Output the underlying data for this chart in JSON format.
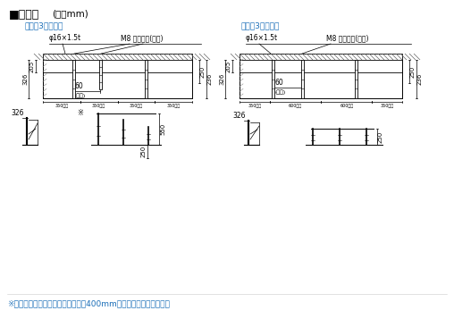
{
  "title_bold": "■据付図",
  "title_normal": "(単位mm)",
  "subtitle_left": "段差式3台の場合",
  "subtitle_right": "平置式3台の場合",
  "label_phi": "φ16×1.5t",
  "label_M8": "M8 アンカー(別途)",
  "dim_205": "205",
  "dim_326": "326",
  "dim_250r": "250",
  "dim_236": "236",
  "dim_60": "60",
  "dim_naisu": "(内寸)",
  "dim_550": "550",
  "dim_250b": "250",
  "dan_bot": [
    "350以上",
    "350以上",
    "350以上",
    "350以上"
  ],
  "hei_bot": [
    "350以上",
    "600以上",
    "600以上",
    "350以上"
  ],
  "asterisk": "※",
  "footer": "※カゴ付自転車の場合取付ピッチは400mm以上をおすすめします。",
  "footer_color": "#1a6eb8",
  "subtitle_color": "#1a6eb8",
  "line_color": "#000000",
  "bg_color": "#ffffff"
}
